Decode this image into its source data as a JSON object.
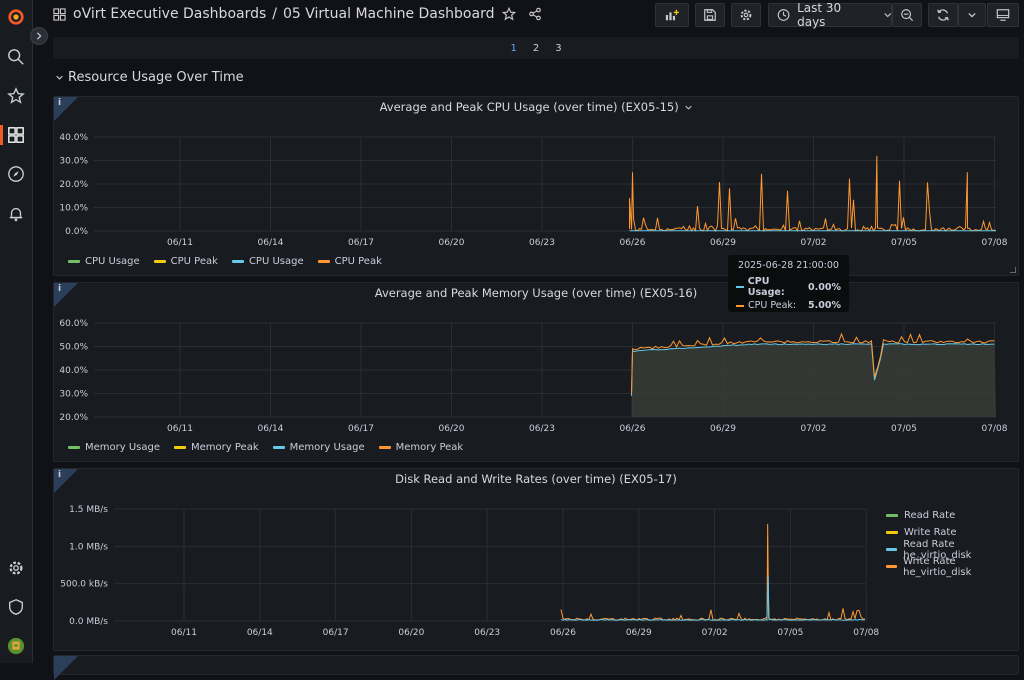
{
  "breadcrumb": {
    "folder": "oVirt Executive Dashboards",
    "separator": "/",
    "dashboard": "05 Virtual Machine Dashboard"
  },
  "toolbar": {
    "time_range": "Last 30 days"
  },
  "pager": [
    "1",
    "2",
    "3"
  ],
  "row": {
    "title": "Resource Usage Over Time"
  },
  "colors": {
    "green": "#73bf69",
    "yellow": "#f2cc0c",
    "cyan": "#5794f2",
    "teal": "#8ab8ff",
    "orange": "#ff9830",
    "lightblue": "#66c8e8"
  },
  "panels": [
    {
      "title": "Average and Peak CPU Usage (over time) (EX05-15)",
      "legend": [
        "CPU Usage",
        "CPU Peak",
        "CPU Usage",
        "CPU Peak"
      ],
      "yticks": [
        "40.0%",
        "30.0%",
        "20.0%",
        "10.0%",
        "0.0%"
      ],
      "xticks": [
        "06/11",
        "06/14",
        "06/17",
        "06/20",
        "06/23",
        "06/26",
        "06/29",
        "07/02",
        "07/05",
        "07/08"
      ]
    },
    {
      "title": "Average and Peak Memory Usage (over time) (EX05-16)",
      "legend": [
        "Memory Usage",
        "Memory Peak",
        "Memory Usage",
        "Memory Peak"
      ],
      "yticks": [
        "60.0%",
        "50.0%",
        "40.0%",
        "30.0%",
        "20.0%"
      ],
      "xticks": [
        "06/11",
        "06/14",
        "06/17",
        "06/20",
        "06/23",
        "06/26",
        "06/29",
        "07/02",
        "07/05",
        "07/08"
      ]
    },
    {
      "title": "Disk Read and Write Rates (over time) (EX05-17)",
      "legend": [
        "Read Rate",
        "Write Rate",
        "Read Rate he_virtio_disk",
        "Write Rate he_virtio_disk"
      ],
      "yticks": [
        "1.5 MB/s",
        "1.0 MB/s",
        "500.0 kB/s",
        "0.0 MB/s"
      ],
      "xticks": [
        "06/11",
        "06/14",
        "06/17",
        "06/20",
        "06/23",
        "06/26",
        "06/29",
        "07/02",
        "07/05",
        "07/08"
      ]
    }
  ],
  "tooltip": {
    "time": "2025-06-28 21:00:00",
    "rows": [
      {
        "label": "CPU Usage:",
        "value": "0.00%"
      },
      {
        "label": "CPU Peak:",
        "value": "5.00%"
      }
    ]
  },
  "chart_data": [
    {
      "type": "line",
      "title": "Average and Peak CPU Usage (over time) (EX05-15)",
      "x": [
        "06/11",
        "06/14",
        "06/17",
        "06/20",
        "06/23",
        "06/26",
        "06/29",
        "07/02",
        "07/05",
        "07/08"
      ],
      "ylim": [
        0,
        40
      ],
      "series": [
        {
          "name": "CPU Usage",
          "values": [
            null,
            null,
            null,
            null,
            null,
            0,
            0,
            0,
            0,
            0
          ]
        },
        {
          "name": "CPU Peak",
          "values": [
            null,
            null,
            null,
            null,
            null,
            14,
            3,
            2,
            2,
            1
          ]
        }
      ],
      "peaks": [
        {
          "x": "07/04",
          "y": 32
        },
        {
          "x": "06/26",
          "y": 25
        },
        {
          "x": "07/01",
          "y": 25
        }
      ]
    },
    {
      "type": "area",
      "title": "Average and Peak Memory Usage (over time) (EX05-16)",
      "x": [
        "06/11",
        "06/14",
        "06/17",
        "06/20",
        "06/23",
        "06/26",
        "06/29",
        "07/02",
        "07/05",
        "07/08"
      ],
      "ylim": [
        20,
        60
      ],
      "series": [
        {
          "name": "Memory Usage",
          "values": [
            null,
            null,
            null,
            null,
            null,
            48,
            51,
            52,
            51,
            51
          ]
        },
        {
          "name": "Memory Peak",
          "values": [
            null,
            null,
            null,
            null,
            null,
            49,
            52,
            53,
            52,
            52
          ]
        }
      ]
    },
    {
      "type": "line",
      "title": "Disk Read and Write Rates (over time) (EX05-17)",
      "x": [
        "06/11",
        "06/14",
        "06/17",
        "06/20",
        "06/23",
        "06/26",
        "06/29",
        "07/02",
        "07/05",
        "07/08"
      ],
      "ylabel": "MB/s",
      "ylim": [
        0,
        1.5
      ],
      "series": [
        {
          "name": "Read Rate he_virtio_disk",
          "values": [
            null,
            null,
            null,
            null,
            null,
            0.01,
            0.01,
            0.01,
            0.01,
            0.01
          ]
        },
        {
          "name": "Write Rate he_virtio_disk",
          "values": [
            null,
            null,
            null,
            null,
            null,
            0.1,
            0.03,
            0.05,
            0.03,
            0.03
          ]
        }
      ],
      "peaks": [
        {
          "x": "07/04",
          "y": 1.3
        }
      ]
    }
  ]
}
